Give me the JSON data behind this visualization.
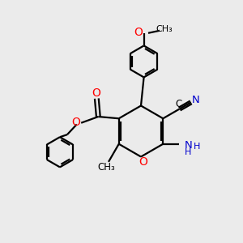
{
  "bg_color": "#ebebeb",
  "bond_color": "#000000",
  "o_color": "#ff0000",
  "n_color": "#0000cd",
  "linewidth": 1.6,
  "figsize": [
    3.0,
    3.0
  ],
  "dpi": 100,
  "xlim": [
    0,
    10
  ],
  "ylim": [
    0,
    10
  ]
}
